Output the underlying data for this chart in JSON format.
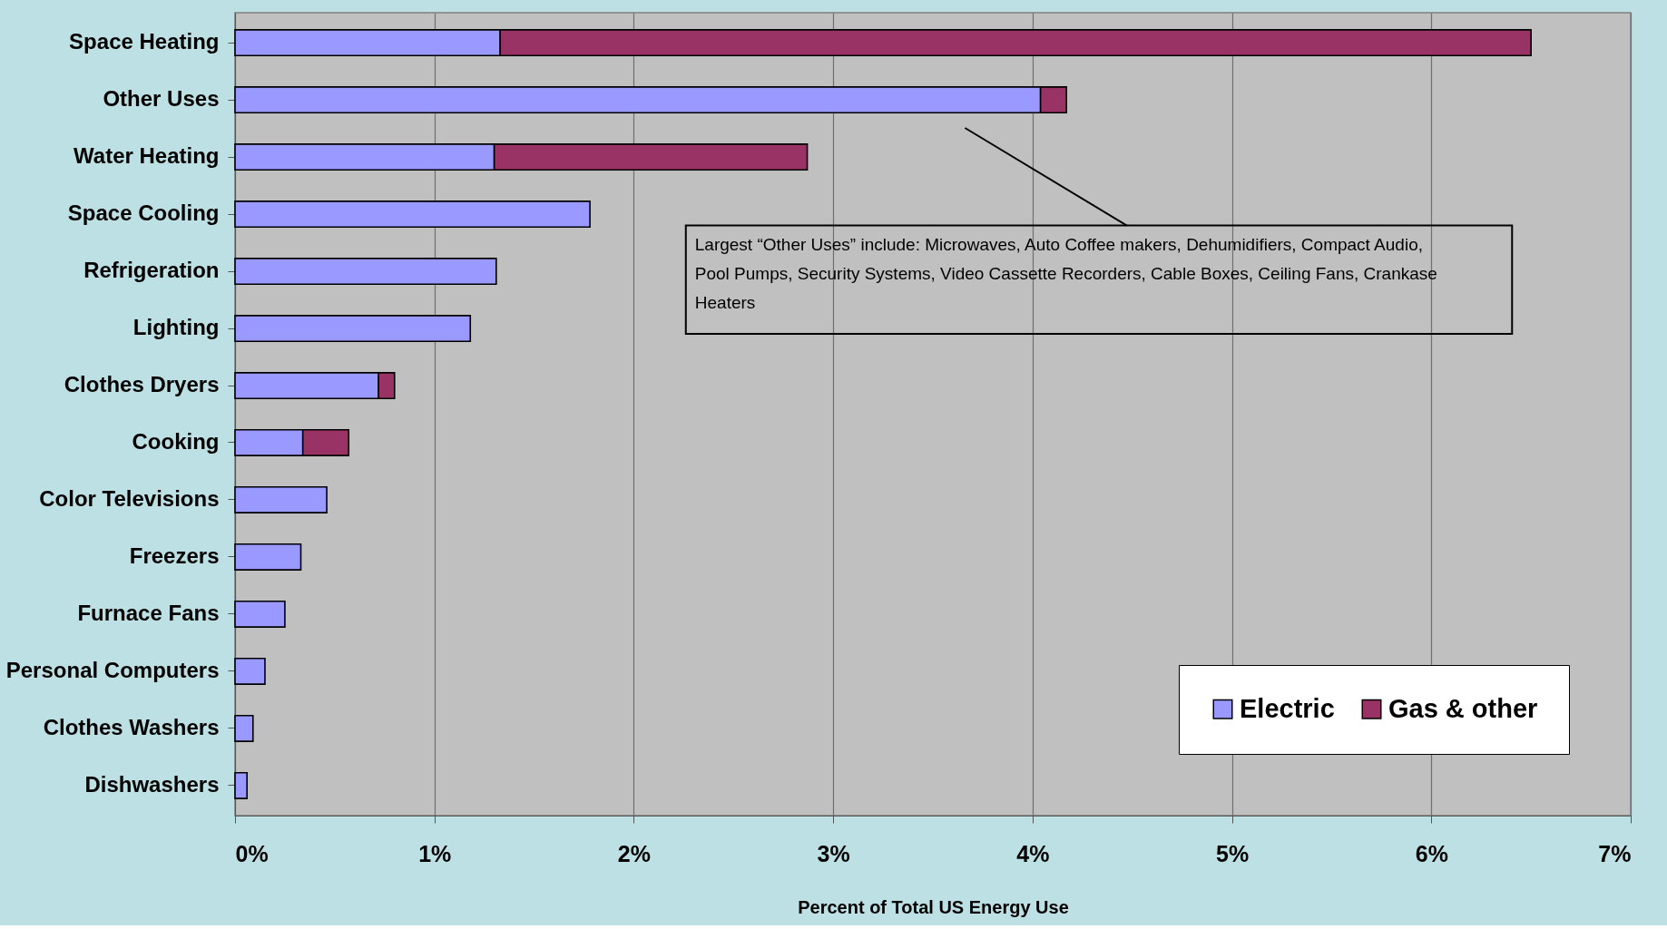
{
  "chart_data": {
    "type": "bar",
    "orientation": "horizontal",
    "stacked": true,
    "categories": [
      "Space Heating",
      "Other Uses",
      "Water Heating",
      "Space Cooling",
      "Refrigeration",
      "Lighting",
      "Clothes Dryers",
      "Cooking",
      "Color Televisions",
      "Freezers",
      "Furnace Fans",
      "Personal Computers",
      "Clothes Washers",
      "Dishwashers"
    ],
    "series": [
      {
        "name": "Electric",
        "color": "#9999ff",
        "values": [
          1.33,
          4.04,
          1.3,
          1.78,
          1.31,
          1.18,
          0.72,
          0.34,
          0.46,
          0.33,
          0.25,
          0.15,
          0.09,
          0.06
        ]
      },
      {
        "name": "Gas & other",
        "color": "#993366",
        "values": [
          5.17,
          0.13,
          1.57,
          null,
          null,
          null,
          0.08,
          0.23,
          null,
          null,
          null,
          null,
          null,
          null
        ]
      }
    ],
    "xlabel": "Percent of Total US Energy Use",
    "xlim": [
      0,
      7
    ],
    "xticks": [
      {
        "value": 0,
        "label": "0%"
      },
      {
        "value": 1,
        "label": "1%"
      },
      {
        "value": 2,
        "label": "2%"
      },
      {
        "value": 3,
        "label": "3%"
      },
      {
        "value": 4,
        "label": "4%"
      },
      {
        "value": 5,
        "label": "5%"
      },
      {
        "value": 6,
        "label": "6%"
      },
      {
        "value": 7,
        "label": "7%"
      }
    ],
    "annotations": [
      "Largest “Other Uses” include: Microwaves, Auto Coffee makers, Dehumidifiers, Compact Audio, Pool Pumps, Security Systems, Video Cassette Recorders,  Cable Boxes, Ceiling Fans, Crankase Heaters"
    ],
    "grid": "x",
    "legend": "bottom right"
  }
}
